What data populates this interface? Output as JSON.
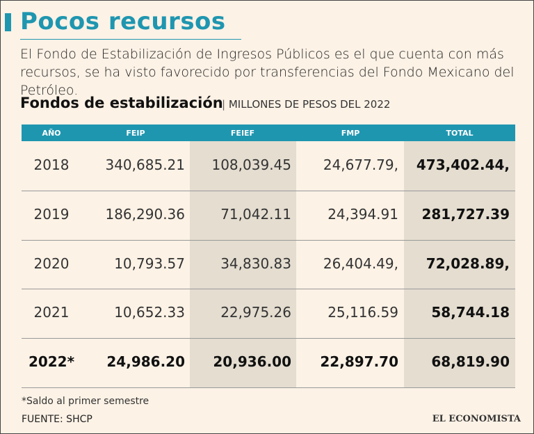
{
  "header": {
    "title": "Pocos recursos",
    "subtitle": "El Fondo de Estabilización de Ingresos Públicos es el que cuenta con más recursos, se ha visto favorecido por transferencias del Fondo Mexicano del Petróleo."
  },
  "table": {
    "title": "Fondos de estabilización",
    "units": "MILLONES DE PESOS DEL 2022",
    "columns": [
      "AÑO",
      "FEIP",
      "FEIEF",
      "FMP",
      "TOTAL"
    ],
    "rows": [
      [
        "2018",
        "340,685.21",
        "108,039.45",
        "24,677.79,",
        "473,402.44,"
      ],
      [
        "2019",
        "186,290.36",
        "71,042.11",
        "24,394.91",
        "281,727.39"
      ],
      [
        "2020",
        "10,793.57",
        "34,830.83",
        "26,404.49,",
        "72,028.89,"
      ],
      [
        "2021",
        "10,652.33",
        "22,975.26",
        "25,116.59",
        "58,744.18"
      ],
      [
        "2022*",
        "24,986.20",
        "20,936.00",
        "22,897.70",
        "68,819.90"
      ]
    ]
  },
  "footnote": "*Saldo al primer semestre",
  "source": "FUENTE: SHCP",
  "brand": "EL ECONOMISTA"
}
